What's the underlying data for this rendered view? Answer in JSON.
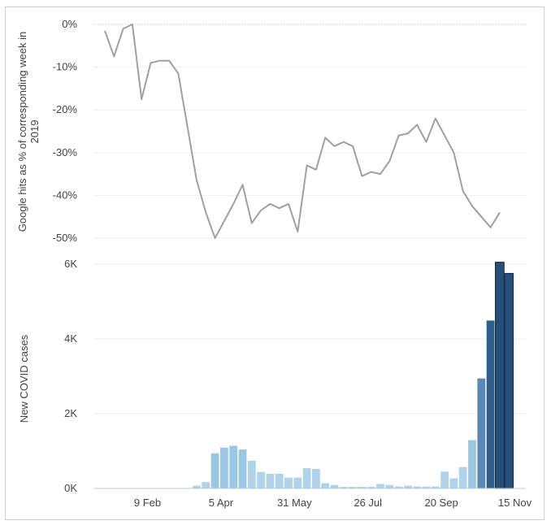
{
  "chart_data": [
    {
      "type": "line",
      "ylabel_lines": [
        "Google hits as % of corresponding week in",
        "2019"
      ],
      "yticks": [
        "0%",
        "-10%",
        "-20%",
        "-30%",
        "-40%",
        "-50%"
      ],
      "ylim": [
        -52,
        2
      ],
      "grid": true,
      "colors": {
        "line": "#a0a0a0",
        "zero_line": "#bbbbbb",
        "grid": "#eeeeee"
      },
      "x": [
        0,
        1,
        2,
        3,
        4,
        5,
        6,
        7,
        8,
        9,
        10,
        11,
        12,
        13,
        14,
        15,
        16,
        17,
        18,
        19,
        20,
        21,
        22,
        23,
        24,
        25,
        26,
        27,
        28,
        29,
        30,
        31,
        32,
        33,
        34,
        35,
        36,
        37,
        38,
        39,
        40,
        41,
        42,
        43
      ],
      "values": [
        -1.5,
        -7.5,
        -1,
        0,
        -17.5,
        -9,
        -8.5,
        -8.5,
        -11.5,
        -24,
        -36.5,
        -44,
        -50,
        -46,
        -42,
        -37.5,
        -46.5,
        -43.5,
        -42,
        -43,
        -42,
        -48.5,
        -33,
        -34,
        -26.5,
        -28.5,
        -27.5,
        -28.5,
        -35.5,
        -34.5,
        -35,
        -32,
        -26,
        -25.5,
        -23.5,
        -27.5,
        -22,
        -26,
        -30,
        -39,
        -42.5,
        -45,
        -47.5,
        -44
      ]
    },
    {
      "type": "bar",
      "ylabel": "New COVID cases",
      "yticks": [
        "0K",
        "2K",
        "4K",
        "6K"
      ],
      "ylim": [
        0,
        6000
      ],
      "grid": true,
      "xticks": [
        {
          "label": "9 Feb",
          "index": 5
        },
        {
          "label": "5 Apr",
          "index": 13
        },
        {
          "label": "31 May",
          "index": 21
        },
        {
          "label": "26 Jul",
          "index": 29
        },
        {
          "label": "20 Sep",
          "index": 37
        },
        {
          "label": "15 Nov",
          "index": 45
        }
      ],
      "values": [
        0,
        0,
        0,
        0,
        0,
        0,
        0,
        0,
        0,
        0,
        80,
        180,
        950,
        1100,
        1150,
        1050,
        750,
        450,
        400,
        400,
        300,
        300,
        550,
        530,
        150,
        100,
        50,
        50,
        50,
        50,
        130,
        100,
        60,
        80,
        60,
        60,
        60,
        460,
        280,
        580,
        1300,
        2950,
        4500,
        6050,
        5750
      ],
      "colors": {
        "lightest": "#aed3ea",
        "light": "#9ac7e3",
        "mid": "#5b89b5",
        "dark": "#2f5d8a",
        "darkest": "#25507c"
      }
    }
  ]
}
